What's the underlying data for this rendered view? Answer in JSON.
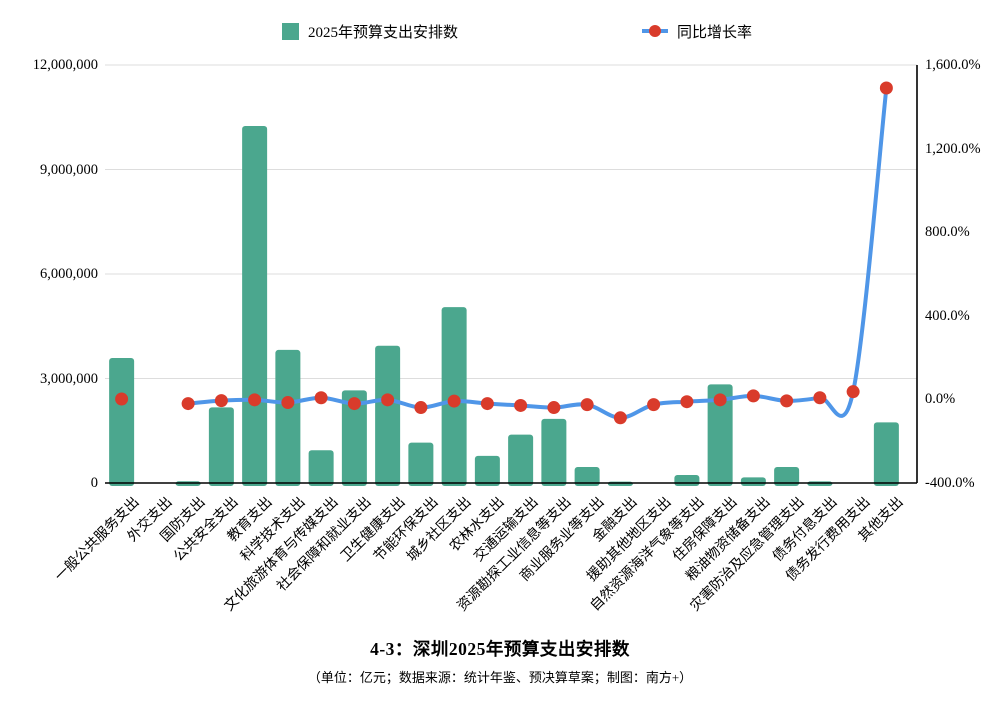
{
  "legend": {
    "bar_label": "2025年预算支出安排数",
    "line_label": "同比增长率"
  },
  "title": "4-3：深圳2025年预算支出安排数",
  "subtitle": "（单位：亿元；数据来源：统计年鉴、预决算草案；制图：南方+）",
  "colors": {
    "bar": "#4BA78E",
    "line": "#4F96E8",
    "marker": "#D93B2B",
    "grid": "#DDDDDD",
    "axis": "#000000"
  },
  "chart_data": {
    "type": "bar+line",
    "title": "4-3：深圳2025年预算支出安排数",
    "legend_position": "top",
    "grid": true,
    "categories": [
      "一般公共服务支出",
      "外交支出",
      "国防支出",
      "公共安全支出",
      "教育支出",
      "科学技术支出",
      "文化旅游体育与传媒支出",
      "社会保障和就业支出",
      "卫生健康支出",
      "节能环保支出",
      "城乡社区支出",
      "农林水支出",
      "交通运输支出",
      "资源勘探工业信息等支出",
      "商业服务业等支出",
      "金融支出",
      "援助其他地区支出",
      "自然资源海洋气象等支出",
      "住房保障支出",
      "粮油物资储备支出",
      "灾害防治及应急管理支出",
      "债务付息支出",
      "债务发行费用支出",
      "其他支出"
    ],
    "series": [
      {
        "name": "2025年预算支出安排数",
        "type": "bar",
        "axis": "left",
        "values": [
          3590000,
          0,
          50000,
          2170000,
          10250000,
          3820000,
          940000,
          2660000,
          3940000,
          1160000,
          5050000,
          780000,
          1390000,
          1840000,
          460000,
          40000,
          0,
          230000,
          2830000,
          160000,
          460000,
          45000,
          0,
          1740000
        ]
      },
      {
        "name": "同比增长率",
        "type": "line",
        "axis": "right",
        "unit": "%",
        "values": [
          2,
          null,
          -20,
          -6,
          -2,
          -15,
          8,
          -20,
          -2,
          -39,
          -8,
          -20,
          -29,
          -39,
          -25,
          -88,
          -25,
          -11,
          -2,
          17,
          -7,
          8,
          37,
          1490
        ]
      }
    ],
    "left_axis": {
      "min": 0,
      "max": 12000000,
      "tick_step": 3000000,
      "tick_labels_top_to_bottom": [
        "12,000,000",
        "9,000,000",
        "6,000,000",
        "3,000,000",
        "0"
      ]
    },
    "right_axis": {
      "min": -400,
      "max": 1600,
      "tick_step": 400,
      "tick_labels_top_to_bottom": [
        "1,600.0%",
        "1,200.0%",
        "800.0%",
        "400.0%",
        "0.0%",
        "-400.0%"
      ]
    }
  }
}
